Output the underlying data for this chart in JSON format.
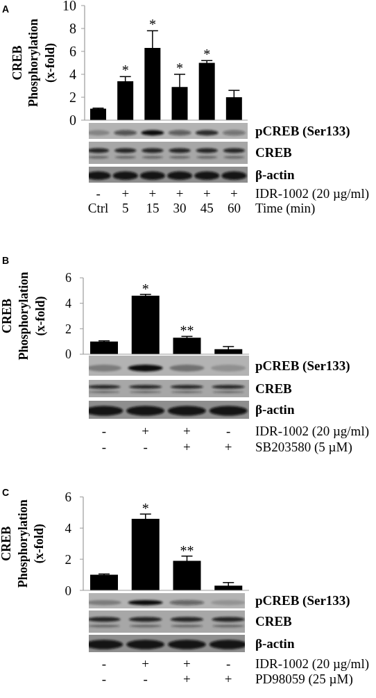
{
  "chart_data": [
    {
      "type": "bar",
      "title": "A",
      "ylabel": "CREB Phosphorylation (x-fold)",
      "xlabel": "IDR-1002 (20 µg/ml)\nTime (min)",
      "categories": [
        "-\nCtrl",
        "+\n5",
        "+\n15",
        "+\n30",
        "+\n45",
        "+\n60"
      ],
      "values": [
        1,
        3.4,
        6.3,
        2.9,
        5,
        2
      ],
      "errors": [
        0.05,
        0.4,
        1.5,
        1.1,
        0.2,
        0.6
      ],
      "color": "#000000",
      "ylim": [
        0,
        10
      ],
      "yticks": [
        0,
        2,
        4,
        6,
        8,
        10
      ],
      "annotations": [
        "*",
        "*",
        "*",
        "*",
        "pCREB (Ser133)",
        "CREB",
        "β-actin"
      ]
    },
    {
      "type": "bar",
      "title": "B",
      "ylabel": "CREB Phosphorylation (x-fold)",
      "xlabel": "IDR-1002 (20 µg/ml)\nSB203580 (5 µM)",
      "categories": [
        "-\n-",
        "+\n-",
        "+\n+",
        "-\n+"
      ],
      "values": [
        1,
        4.6,
        1.3,
        0.4
      ],
      "errors": [
        0.05,
        0.1,
        0.1,
        0.2
      ],
      "color": "#000000",
      "ylim": [
        0,
        6
      ],
      "yticks": [
        0,
        2,
        4,
        6
      ],
      "annotations": [
        "*",
        "**",
        "pCREB (Ser133)",
        "CREB",
        "β-actin"
      ]
    },
    {
      "type": "bar",
      "title": "C",
      "ylabel": "CREB Phosphorylation (x-fold)",
      "xlabel": "IDR-1002 (20 µg/ml)\nPD98059 (25 µM)",
      "categories": [
        "-\n-",
        "+\n-",
        "+\n+",
        "-\n+"
      ],
      "values": [
        1,
        4.6,
        1.9,
        0.3
      ],
      "errors": [
        0.05,
        0.3,
        0.3,
        0.2
      ],
      "color": "#000000",
      "ylim": [
        0,
        6
      ],
      "yticks": [
        0,
        2,
        4,
        6
      ],
      "annotations": [
        "*",
        "**",
        "pCREB (Ser133)",
        "CREB",
        "β-actin"
      ]
    }
  ]
}
